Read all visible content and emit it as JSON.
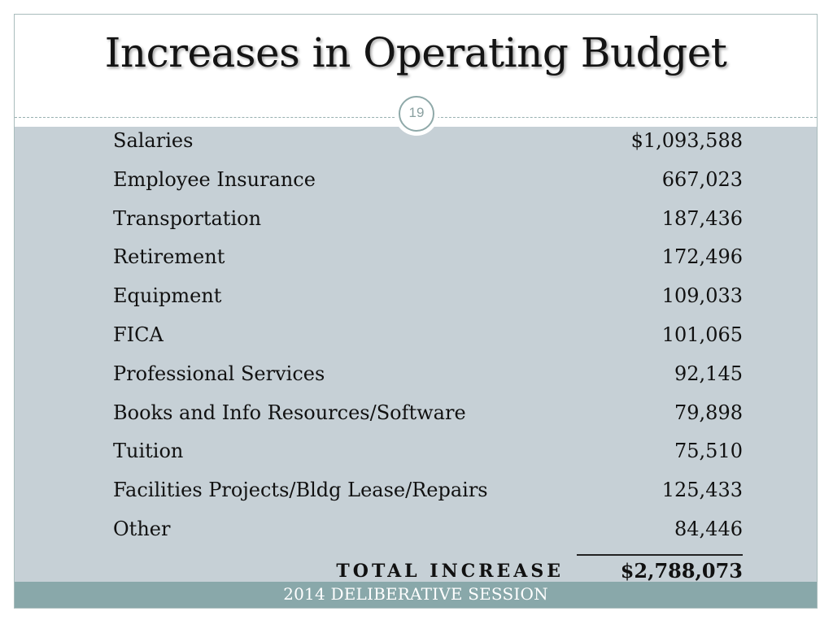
{
  "slide": {
    "title": "Increases in Operating Budget",
    "page_number": "19",
    "footer": "2014 DELIBERATIVE SESSION"
  },
  "table": {
    "rows": [
      {
        "label": "Salaries",
        "amount": "$1,093,588"
      },
      {
        "label": "Employee Insurance",
        "amount": "667,023"
      },
      {
        "label": "Transportation",
        "amount": "187,436"
      },
      {
        "label": "Retirement",
        "amount": "172,496"
      },
      {
        "label": "Equipment",
        "amount": "109,033"
      },
      {
        "label": "FICA",
        "amount": "101,065"
      },
      {
        "label": "Professional Services",
        "amount": "92,145"
      },
      {
        "label": "Books and Info Resources/Software",
        "amount": "79,898"
      },
      {
        "label": "Tuition",
        "amount": "75,510"
      },
      {
        "label": "Facilities Projects/Bldg Lease/Repairs",
        "amount": "125,433"
      },
      {
        "label": "Other",
        "amount": "84,446"
      }
    ],
    "total": {
      "label": "TOTAL INCREASE",
      "amount": "$2,788,073"
    }
  },
  "colors": {
    "content_background": "#c6d0d6",
    "footer_background": "#89a8aa",
    "accent": "#8fa9a9"
  }
}
